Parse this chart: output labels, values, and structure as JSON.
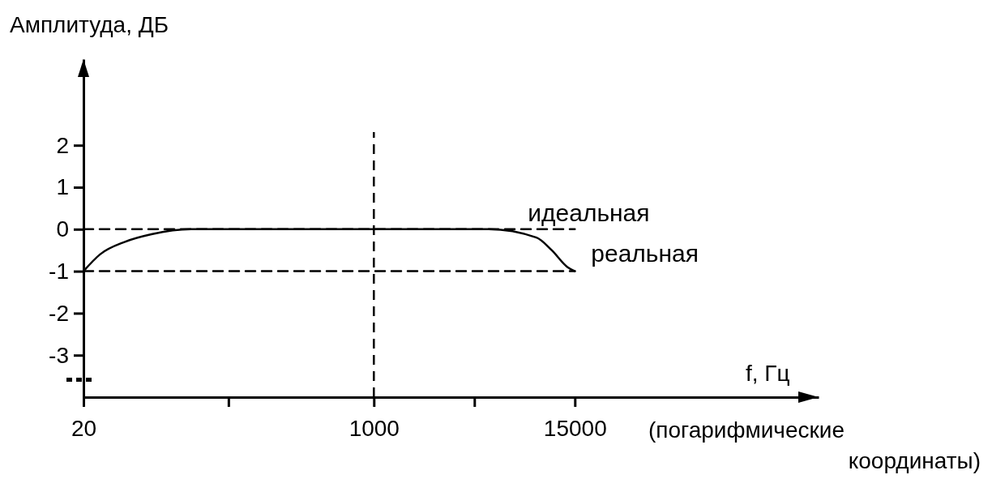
{
  "chart_data": {
    "type": "line",
    "ylabel": "Амплитуда, ДБ",
    "xlabel": "f, Гц",
    "log": "x",
    "xlim": [
      20,
      400000
    ],
    "ylim": [
      -4,
      4.05
    ],
    "xticks": [
      20,
      {
        "value": 141,
        "label": null
      },
      1000,
      {
        "value": 3873,
        "label": null
      },
      15000
    ],
    "yticks": [
      -3,
      -2,
      -1,
      0,
      1,
      2
    ],
    "series": [
      {
        "name": "реальная",
        "color": "#000000",
        "x": [
          20,
          25,
          35,
          50,
          85,
          1000,
          4700,
          8950,
          10980,
          13560,
          15000
        ],
        "values": [
          -1,
          -0.6,
          -0.3,
          -0.12,
          0,
          0,
          0,
          -0.2,
          -0.5,
          -0.9,
          -1
        ]
      },
      {
        "name": "идеальная",
        "color": "#000000",
        "line_style": "dashed",
        "x": [
          20,
          15000
        ],
        "values": [
          0,
          0
        ]
      },
      {
        "color": "#000000",
        "line_style": "dashed",
        "x": [
          20,
          15000
        ],
        "values": [
          -1,
          -1
        ]
      }
    ],
    "ref_lines": [
      {
        "axis": "x",
        "value": 1000,
        "color": "#000000",
        "line_style": "dashed"
      }
    ],
    "annotations": [
      "(погарифмические координаты)"
    ],
    "grid": false,
    "legend": false,
    "marker": "none",
    "line_style": "solid"
  }
}
